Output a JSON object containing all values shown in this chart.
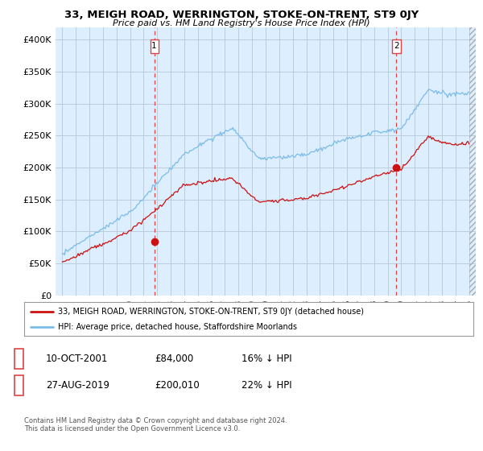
{
  "title": "33, MEIGH ROAD, WERRINGTON, STOKE-ON-TRENT, ST9 0JY",
  "subtitle": "Price paid vs. HM Land Registry's House Price Index (HPI)",
  "hpi_color": "#7bbce8",
  "hpi_fill_color": "#d6eaf8",
  "price_color": "#cc1111",
  "vline_color": "#dd4444",
  "marker_fill": "#cc1111",
  "ylim": [
    0,
    420000
  ],
  "yticks": [
    0,
    50000,
    100000,
    150000,
    200000,
    250000,
    300000,
    350000,
    400000
  ],
  "ytick_labels": [
    "£0",
    "£50K",
    "£100K",
    "£150K",
    "£200K",
    "£250K",
    "£300K",
    "£350K",
    "£400K"
  ],
  "marker1_date": 2001.78,
  "marker1_price": 84000,
  "marker1_label": "1",
  "marker2_date": 2019.65,
  "marker2_price": 200010,
  "marker2_label": "2",
  "legend_line1": "33, MEIGH ROAD, WERRINGTON, STOKE-ON-TRENT, ST9 0JY (detached house)",
  "legend_line2": "HPI: Average price, detached house, Staffordshire Moorlands",
  "table_row1_num": "1",
  "table_row1_date": "10-OCT-2001",
  "table_row1_price": "£84,000",
  "table_row1_hpi": "16% ↓ HPI",
  "table_row2_num": "2",
  "table_row2_date": "27-AUG-2019",
  "table_row2_price": "£200,010",
  "table_row2_hpi": "22% ↓ HPI",
  "footer": "Contains HM Land Registry data © Crown copyright and database right 2024.\nThis data is licensed under the Open Government Licence v3.0.",
  "background_color": "#ffffff",
  "plot_bg_color": "#ddeeff",
  "grid_color": "#bbccdd"
}
